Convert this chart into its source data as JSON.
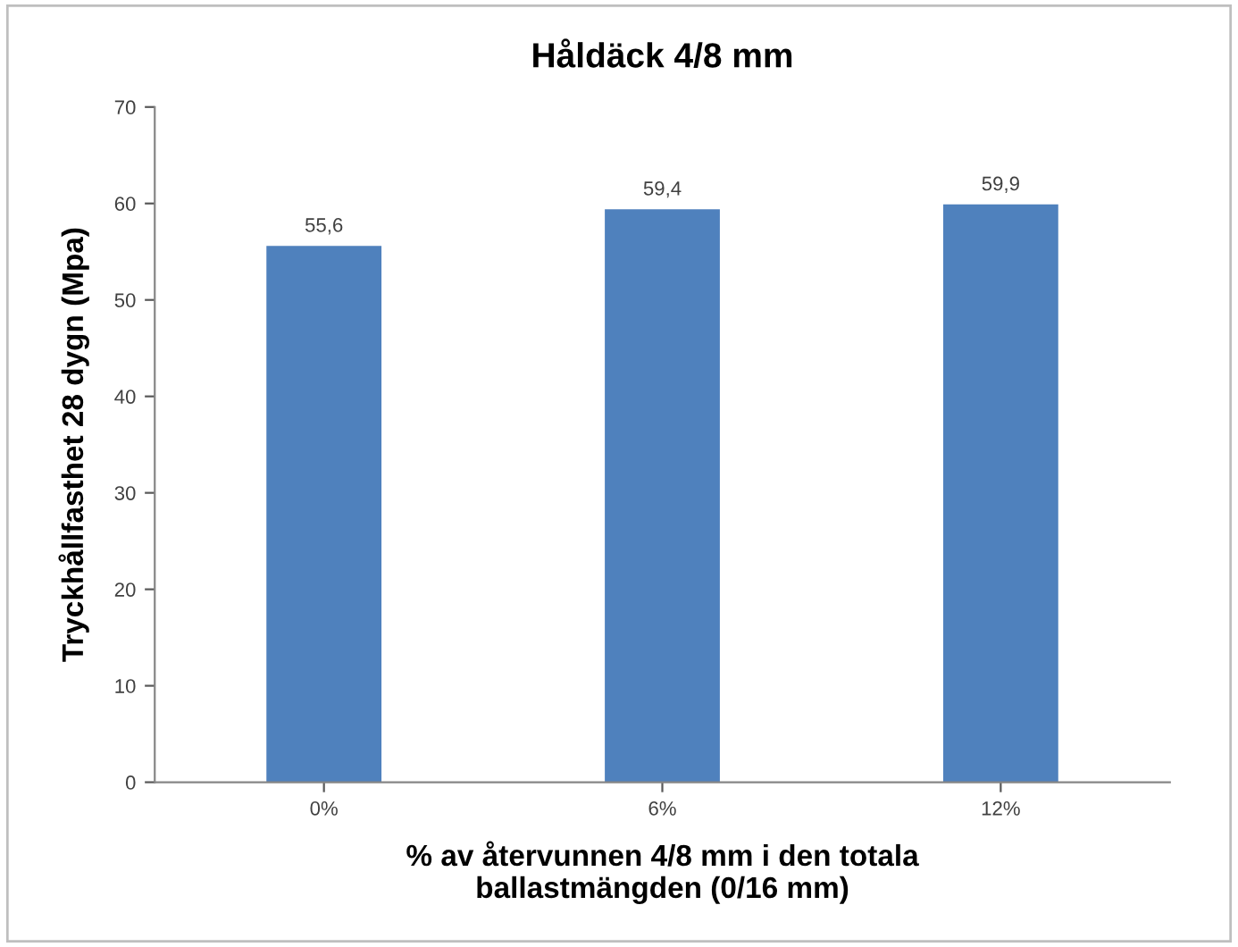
{
  "chart_data": {
    "type": "bar",
    "title": "Håldäck 4/8 mm",
    "xlabel": "% av återvunnen 4/8 mm i den totala\nballastmängden (0/16 mm)",
    "ylabel": "Tryckhållfasthet 28 dygn (Mpa)",
    "categories": [
      "0%",
      "6%",
      "12%"
    ],
    "values": [
      55.6,
      59.4,
      59.9
    ],
    "value_labels": [
      "55,6",
      "59,4",
      "59,9"
    ],
    "color": "#4f81bd",
    "ylim": [
      0,
      70
    ],
    "yticks": [
      0,
      10,
      20,
      30,
      40,
      50,
      60,
      70
    ],
    "grid": false,
    "legend": false
  }
}
